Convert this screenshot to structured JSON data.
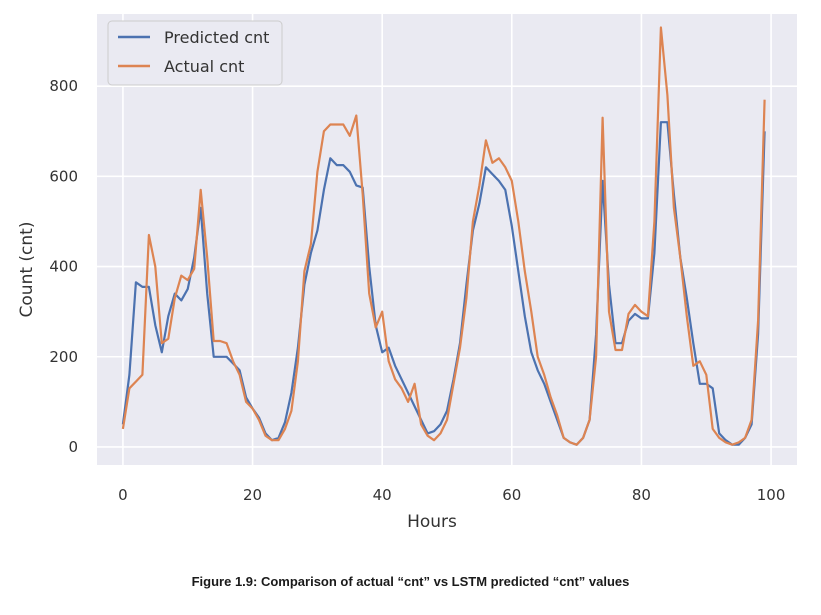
{
  "caption": "Figure 1.9: Comparison of actual “cnt” vs LSTM predicted “cnt” values",
  "chart_data": {
    "type": "line",
    "title": "",
    "xlabel": "Hours",
    "ylabel": "Count (cnt)",
    "xlim": [
      -4,
      104
    ],
    "ylim": [
      -40,
      960
    ],
    "xticks": [
      0,
      20,
      40,
      60,
      80,
      100
    ],
    "yticks": [
      0,
      200,
      400,
      600,
      800
    ],
    "grid": true,
    "legend_position": "top-left",
    "background": "#eaeaf2",
    "series": [
      {
        "name": "Predicted cnt",
        "color": "#4c72b0",
        "values": [
          50,
          160,
          365,
          355,
          355,
          270,
          210,
          290,
          340,
          325,
          350,
          420,
          530,
          340,
          200,
          200,
          200,
          185,
          170,
          110,
          85,
          65,
          30,
          15,
          20,
          55,
          120,
          220,
          360,
          430,
          480,
          570,
          640,
          625,
          625,
          610,
          580,
          575,
          400,
          270,
          210,
          220,
          180,
          150,
          120,
          90,
          60,
          30,
          35,
          50,
          80,
          150,
          230,
          360,
          480,
          540,
          620,
          605,
          590,
          570,
          490,
          390,
          290,
          210,
          170,
          140,
          100,
          60,
          20,
          10,
          5,
          20,
          60,
          250,
          590,
          360,
          230,
          230,
          280,
          295,
          285,
          285,
          430,
          720,
          720,
          560,
          420,
          330,
          230,
          140,
          140,
          130,
          30,
          15,
          5,
          5,
          20,
          50,
          250,
          700
        ]
      },
      {
        "name": "Actual cnt",
        "color": "#dd8452",
        "values": [
          40,
          130,
          145,
          160,
          470,
          400,
          230,
          240,
          330,
          380,
          370,
          395,
          570,
          420,
          235,
          235,
          230,
          190,
          160,
          100,
          85,
          60,
          25,
          15,
          15,
          40,
          80,
          190,
          390,
          450,
          610,
          700,
          715,
          715,
          715,
          690,
          735,
          560,
          340,
          265,
          300,
          190,
          150,
          130,
          100,
          140,
          50,
          25,
          15,
          30,
          60,
          140,
          220,
          330,
          500,
          580,
          680,
          630,
          640,
          620,
          590,
          500,
          390,
          300,
          200,
          160,
          110,
          70,
          20,
          10,
          5,
          20,
          60,
          200,
          730,
          300,
          215,
          215,
          295,
          315,
          300,
          290,
          500,
          930,
          780,
          530,
          420,
          290,
          180,
          190,
          160,
          40,
          20,
          10,
          5,
          10,
          20,
          60,
          280,
          770
        ]
      }
    ]
  }
}
